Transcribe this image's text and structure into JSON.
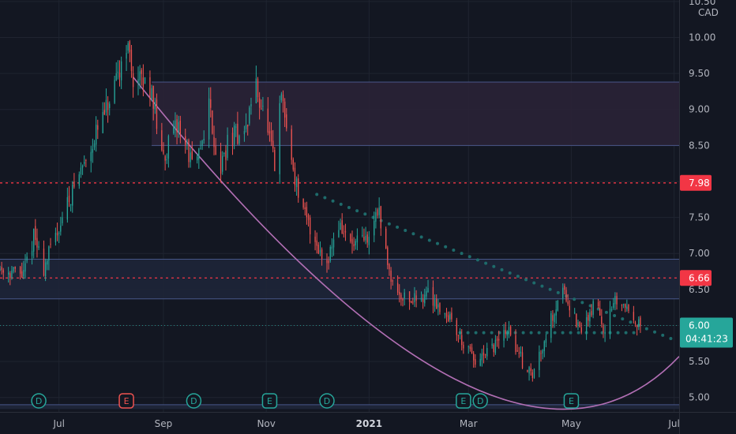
{
  "chart_data": {
    "type": "candlestick",
    "currency": "CAD",
    "y_axis": {
      "ticks": [
        "10.50",
        "10.00",
        "9.50",
        "9.00",
        "8.50",
        "8.00",
        "7.50",
        "7.00",
        "6.50",
        "6.00",
        "5.50",
        "5.00"
      ],
      "range": [
        4.8,
        10.52
      ]
    },
    "x_axis": {
      "ticks": [
        {
          "label": "Jul",
          "date": "2020-07-01"
        },
        {
          "label": "Sep",
          "date": "2020-09-01"
        },
        {
          "label": "Nov",
          "date": "2020-11-01"
        },
        {
          "label": "2021",
          "date": "2021-01-01",
          "year": true
        },
        {
          "label": "Mar",
          "date": "2021-03-01"
        },
        {
          "label": "May",
          "date": "2021-05-01"
        },
        {
          "label": "Jul",
          "date": "2021-07-01"
        }
      ],
      "range": [
        "2020-05-27",
        "2021-07-04"
      ]
    },
    "colors": {
      "up": "#26a69a",
      "down": "#ef5350",
      "background": "#131722",
      "grid": "#1f2430",
      "level_red": "#f23645",
      "last_price": "#26a69a",
      "arc": "#b26fb4",
      "dotted_trend": "#1e6b6b",
      "zone_border": "#5b6fb0"
    },
    "price_levels": [
      {
        "price": 7.98,
        "label": "7.98",
        "color": "#f23645"
      },
      {
        "price": 6.66,
        "label": "6.66",
        "color": "#f23645"
      }
    ],
    "last_price": {
      "label": "6.00",
      "countdown": "04:41:23",
      "price": 6.0
    },
    "zones": [
      {
        "from": 8.5,
        "to": 9.38,
        "start": "2020-08-25",
        "color": "#2a2236"
      },
      {
        "from": 6.37,
        "to": 6.92,
        "start": "2020-05-27",
        "color": "#1e2538"
      }
    ],
    "events": [
      {
        "type": "D",
        "date": "2020-06-19",
        "color": "#26a69a"
      },
      {
        "type": "E",
        "date": "2020-08-10",
        "color": "#ef5350"
      },
      {
        "type": "D",
        "date": "2020-09-19",
        "color": "#26a69a"
      },
      {
        "type": "E",
        "date": "2020-11-03",
        "color": "#26a69a"
      },
      {
        "type": "D",
        "date": "2020-12-07",
        "color": "#26a69a"
      },
      {
        "type": "E",
        "date": "2021-02-26",
        "color": "#26a69a"
      },
      {
        "type": "D",
        "date": "2021-03-08",
        "color": "#26a69a"
      },
      {
        "type": "E",
        "date": "2021-05-01",
        "color": "#26a69a"
      }
    ],
    "dotted_trendline": {
      "from": {
        "date": "2020-12-01",
        "price": 7.82
      },
      "to": {
        "date": "2021-07-01",
        "price": 5.8
      }
    },
    "dotted_support": {
      "from": {
        "date": "2021-02-24",
        "price": 5.9
      },
      "to": {
        "date": "2021-06-11",
        "price": 5.9
      }
    },
    "arc": {
      "start": {
        "date": "2020-08-14",
        "price": 9.45
      },
      "control": {
        "date": "2021-03-22",
        "price": 3.0
      },
      "end": {
        "date": "2021-07-04",
        "price": 5.57
      }
    },
    "waypoints": [
      [
        "2020-05-27",
        6.8
      ],
      [
        "2020-06-10",
        6.7
      ],
      [
        "2020-06-16",
        7.25
      ],
      [
        "2020-06-22",
        6.8
      ],
      [
        "2020-07-06",
        7.7
      ],
      [
        "2020-07-20",
        8.5
      ],
      [
        "2020-08-03",
        9.25
      ],
      [
        "2020-08-10",
        9.95
      ],
      [
        "2020-08-14",
        9.45
      ],
      [
        "2020-08-25",
        9.3
      ],
      [
        "2020-08-31",
        8.3
      ],
      [
        "2020-09-10",
        8.8
      ],
      [
        "2020-09-20",
        8.1
      ],
      [
        "2020-09-28",
        9.1
      ],
      [
        "2020-10-04",
        8.1
      ],
      [
        "2020-10-10",
        8.6
      ],
      [
        "2020-10-20",
        8.7
      ],
      [
        "2020-10-25",
        9.4
      ],
      [
        "2020-11-01",
        8.8
      ],
      [
        "2020-11-06",
        8.2
      ],
      [
        "2020-11-10",
        9.2
      ],
      [
        "2020-11-16",
        8.3
      ],
      [
        "2020-11-22",
        7.6
      ],
      [
        "2020-11-30",
        7.2
      ],
      [
        "2020-12-06",
        6.85
      ],
      [
        "2020-12-14",
        7.4
      ],
      [
        "2020-12-22",
        7.1
      ],
      [
        "2021-01-01",
        7.2
      ],
      [
        "2021-01-06",
        7.65
      ],
      [
        "2021-01-10",
        7.1
      ],
      [
        "2021-01-16",
        6.5
      ],
      [
        "2021-01-26",
        6.35
      ],
      [
        "2021-02-05",
        6.45
      ],
      [
        "2021-02-18",
        6.1
      ],
      [
        "2021-02-26",
        5.75
      ],
      [
        "2021-03-06",
        5.45
      ],
      [
        "2021-03-16",
        5.7
      ],
      [
        "2021-03-24",
        5.95
      ],
      [
        "2021-04-02",
        5.5
      ],
      [
        "2021-04-08",
        5.3
      ],
      [
        "2021-04-14",
        5.75
      ],
      [
        "2021-04-26",
        6.55
      ],
      [
        "2021-05-06",
        5.9
      ],
      [
        "2021-05-16",
        6.35
      ],
      [
        "2021-05-20",
        5.95
      ],
      [
        "2021-05-28",
        6.35
      ],
      [
        "2021-06-06",
        6.2
      ],
      [
        "2021-06-12",
        5.9
      ]
    ]
  }
}
